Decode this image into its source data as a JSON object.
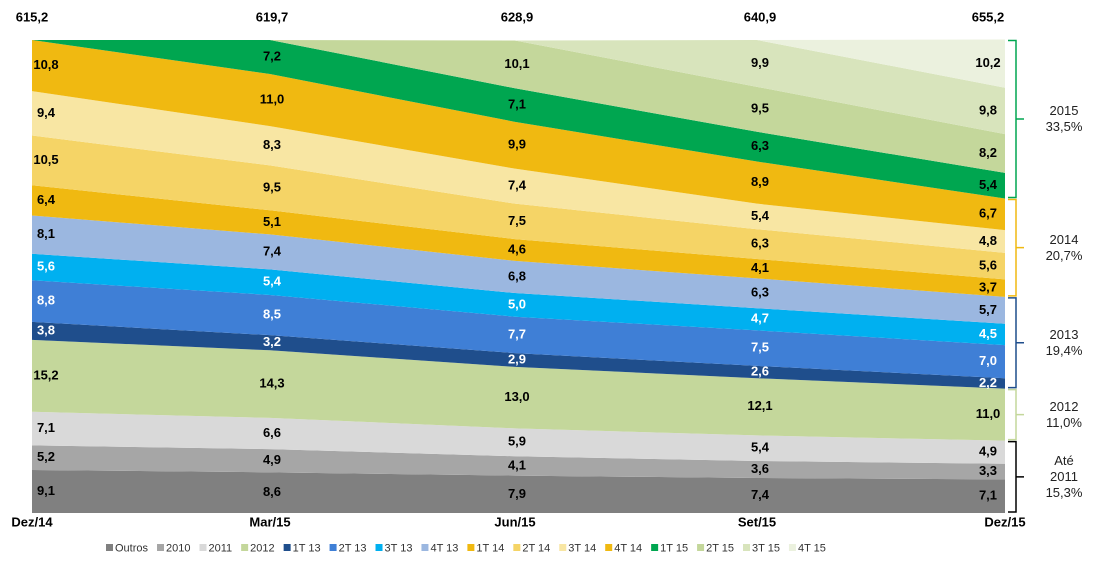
{
  "chart_data": {
    "type": "stacked_area",
    "categories": [
      "Dez/14",
      "Mar/15",
      "Jun/15",
      "Set/15",
      "Dez/15"
    ],
    "ylim": [
      0,
      100
    ],
    "totals": {
      "values": [
        615.2,
        619.7,
        628.9,
        640.9,
        655.2
      ],
      "value_labels": [
        "615,2",
        "619,7",
        "628,9",
        "640,9",
        "655,2"
      ]
    },
    "series": [
      {
        "name": "Outros",
        "color": "#808080",
        "label_color": "#000",
        "values": [
          9.1,
          8.6,
          7.9,
          7.4,
          7.1
        ],
        "value_labels": [
          "9,1",
          "8,6",
          "7,9",
          "7,4",
          "7,1"
        ]
      },
      {
        "name": "2010",
        "color": "#a6a6a6",
        "label_color": "#000",
        "values": [
          5.2,
          4.9,
          4.1,
          3.6,
          3.3
        ],
        "value_labels": [
          "5,2",
          "4,9",
          "4,1",
          "3,6",
          "3,3"
        ]
      },
      {
        "name": "2011",
        "color": "#d9d9d9",
        "label_color": "#000",
        "values": [
          7.1,
          6.6,
          5.9,
          5.4,
          4.9
        ],
        "value_labels": [
          "7,1",
          "6,6",
          "5,9",
          "5,4",
          "4,9"
        ]
      },
      {
        "name": "2012",
        "color": "#c4d79b",
        "label_color": "#000",
        "values": [
          15.2,
          14.3,
          13.0,
          12.1,
          11.0
        ],
        "value_labels": [
          "15,2",
          "14,3",
          "13,0",
          "12,1",
          "11,0"
        ]
      },
      {
        "name": "1T 13",
        "color": "#1f4e8c",
        "label_color": "#fff",
        "values": [
          3.8,
          3.2,
          2.9,
          2.6,
          2.2
        ],
        "value_labels": [
          "3,8",
          "3,2",
          "2,9",
          "2,6",
          "2,2"
        ]
      },
      {
        "name": "2T 13",
        "color": "#3f7fd6",
        "label_color": "#fff",
        "values": [
          8.8,
          8.5,
          7.7,
          7.5,
          7.0
        ],
        "value_labels": [
          "8,8",
          "8,5",
          "7,7",
          "7,5",
          "7,0"
        ]
      },
      {
        "name": "3T 13",
        "color": "#00b0f0",
        "label_color": "#fff",
        "values": [
          5.6,
          5.4,
          5.0,
          4.7,
          4.5
        ],
        "value_labels": [
          "5,6",
          "5,4",
          "5,0",
          "4,7",
          "4,5"
        ]
      },
      {
        "name": "4T 13",
        "color": "#9bb7e0",
        "label_color": "#000",
        "values": [
          8.1,
          7.4,
          6.8,
          6.3,
          5.7
        ],
        "value_labels": [
          "8,1",
          "7,4",
          "6,8",
          "6,3",
          "5,7"
        ]
      },
      {
        "name": "1T 14",
        "color": "#f0b911",
        "label_color": "#000",
        "values": [
          6.4,
          5.1,
          4.6,
          4.1,
          3.7
        ],
        "value_labels": [
          "6,4",
          "5,1",
          "4,6",
          "4,1",
          "3,7"
        ]
      },
      {
        "name": "2T 14",
        "color": "#f5d466",
        "label_color": "#000",
        "values": [
          10.5,
          9.5,
          7.5,
          6.3,
          5.6
        ],
        "value_labels": [
          "10,5",
          "9,5",
          "7,5",
          "6,3",
          "5,6"
        ]
      },
      {
        "name": "3T 14",
        "color": "#f8e6a3",
        "label_color": "#000",
        "values": [
          9.4,
          8.3,
          7.4,
          5.4,
          4.8
        ],
        "value_labels": [
          "9,4",
          "8,3",
          "7,4",
          "5,4",
          "4,8"
        ]
      },
      {
        "name": "4T 14",
        "color": "#f0b911",
        "label_color": "#000",
        "values": [
          10.8,
          11.0,
          9.9,
          8.9,
          6.7
        ],
        "value_labels": [
          "10,8",
          "11,0",
          "9,9",
          "8,9",
          "6,7"
        ]
      },
      {
        "name": "1T 15",
        "color": "#00a650",
        "label_color": "#000",
        "values": [
          null,
          7.2,
          7.1,
          6.3,
          5.4
        ],
        "value_labels": [
          null,
          "7,2",
          "7,1",
          "6,3",
          "5,4"
        ]
      },
      {
        "name": "2T 15",
        "color": "#c4d79b",
        "label_color": "#000",
        "values": [
          null,
          null,
          10.1,
          9.5,
          8.2
        ],
        "value_labels": [
          null,
          null,
          "10,1",
          "9,5",
          "8,2"
        ]
      },
      {
        "name": "3T 15",
        "color": "#d8e4bc",
        "label_color": "#000",
        "values": [
          null,
          null,
          null,
          9.9,
          9.8
        ],
        "value_labels": [
          null,
          null,
          null,
          "9,9",
          "9,8"
        ]
      },
      {
        "name": "4T 15",
        "color": "#ebf1de",
        "label_color": "#000",
        "values": [
          null,
          null,
          null,
          null,
          10.2
        ],
        "value_labels": [
          null,
          null,
          null,
          null,
          "10,2"
        ]
      }
    ],
    "brackets": [
      {
        "label": "2015",
        "value": 33.5,
        "value_label": "33,5%",
        "color": "#00a650"
      },
      {
        "label": "2014",
        "value": 20.7,
        "value_label": "20,7%",
        "color": "#f0b911"
      },
      {
        "label": "2013",
        "value": 19.4,
        "value_label": "19,4%",
        "color": "#1f4e8c"
      },
      {
        "label": "2012",
        "value": 11.0,
        "value_label": "11,0%",
        "color": "#c4d79b"
      },
      {
        "label": "Até 2011",
        "value": 15.3,
        "value_label": "15,3%",
        "color": "#000000"
      }
    ]
  }
}
